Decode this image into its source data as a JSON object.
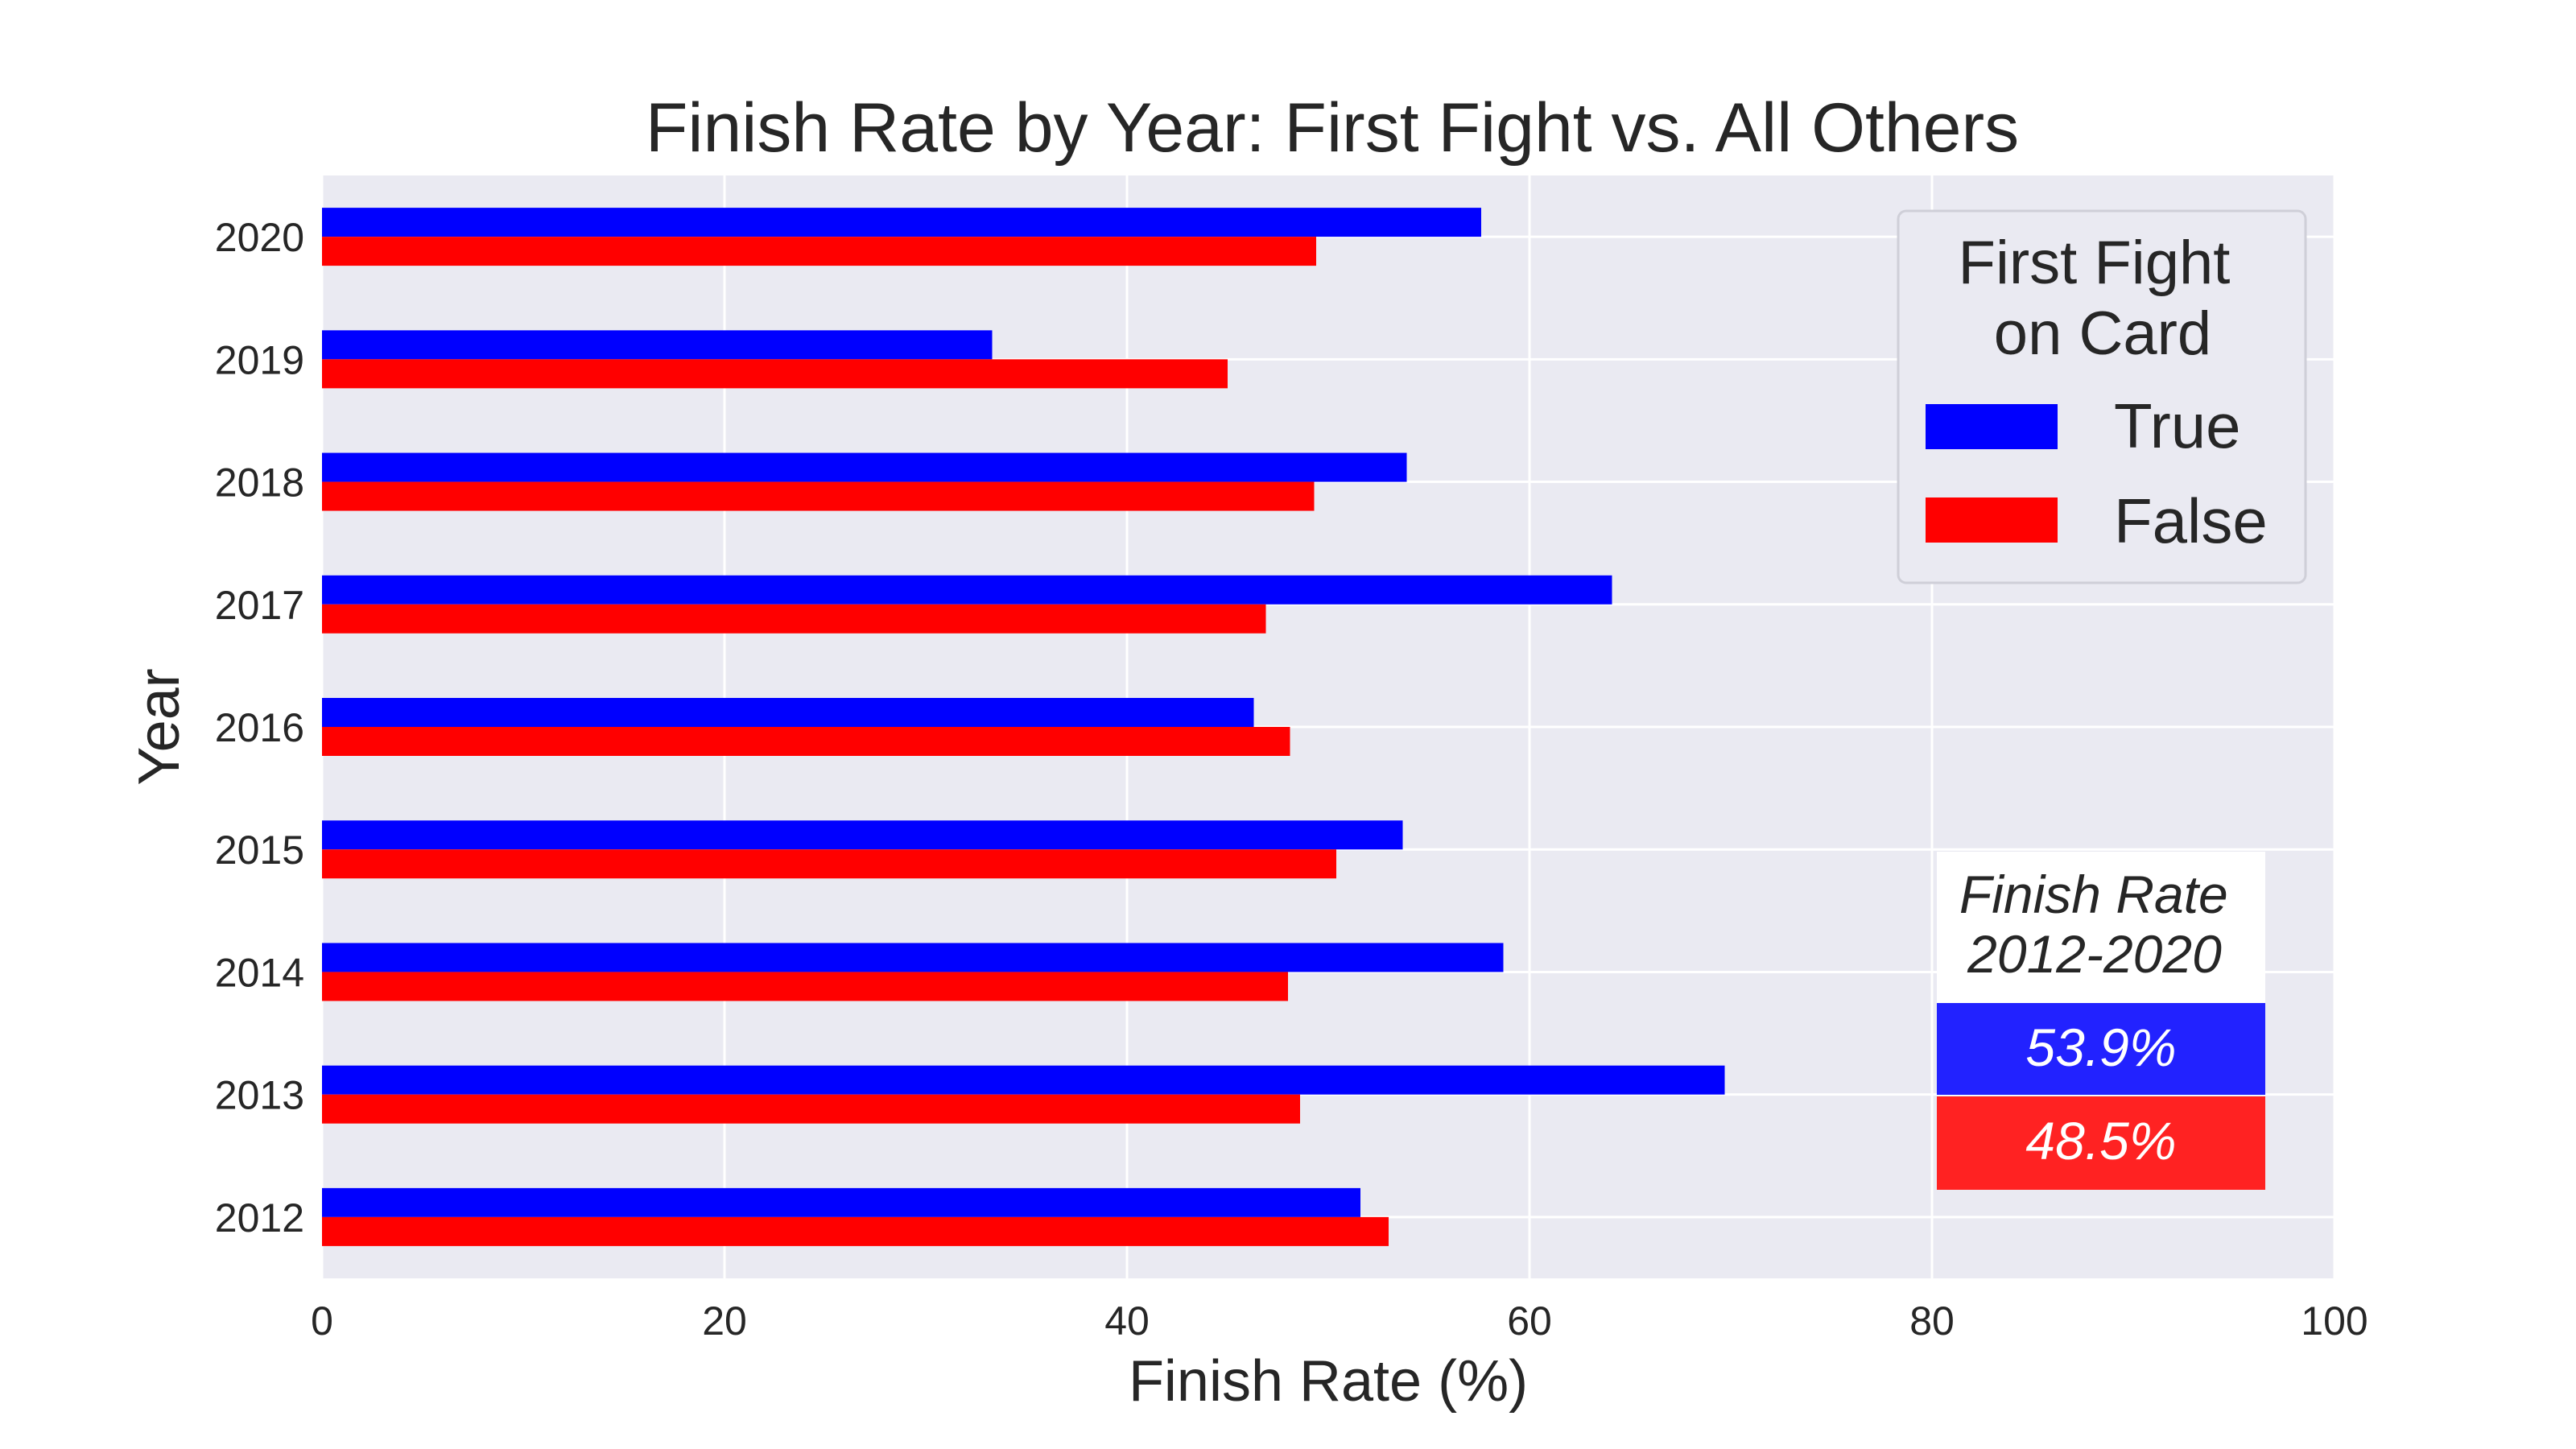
{
  "chart_data": {
    "type": "bar",
    "orientation": "horizontal",
    "title": "Finish Rate by Year: First Fight vs. All Others",
    "xlabel": "Finish Rate (%)",
    "ylabel": "Year",
    "xlim": [
      0,
      100
    ],
    "x_ticks": [
      "0",
      "20",
      "40",
      "60",
      "80",
      "100"
    ],
    "grid": true,
    "categories": [
      "2012",
      "2013",
      "2014",
      "2015",
      "2016",
      "2017",
      "2018",
      "2019",
      "2020"
    ],
    "series": [
      {
        "name": "True",
        "color": "#0000ff",
        "values": [
          51.6,
          69.7,
          58.7,
          53.7,
          46.3,
          64.1,
          53.9,
          33.3,
          57.6
        ]
      },
      {
        "name": "False",
        "color": "#ff0000",
        "values": [
          53.0,
          48.6,
          48.0,
          50.4,
          48.1,
          46.9,
          49.3,
          45.0,
          49.4
        ]
      }
    ],
    "legend": {
      "title": "First Fight\non Card",
      "placement": "top-right"
    },
    "summary_table": {
      "header": "Finish Rate\n2012-2020",
      "rows": [
        {
          "value": "53.9%",
          "color": "#2222ff"
        },
        {
          "value": "48.5%",
          "color": "#ff2222"
        }
      ]
    },
    "style": {
      "plot_background": "#eaeaf2",
      "grid_color": "#ffffff"
    }
  }
}
